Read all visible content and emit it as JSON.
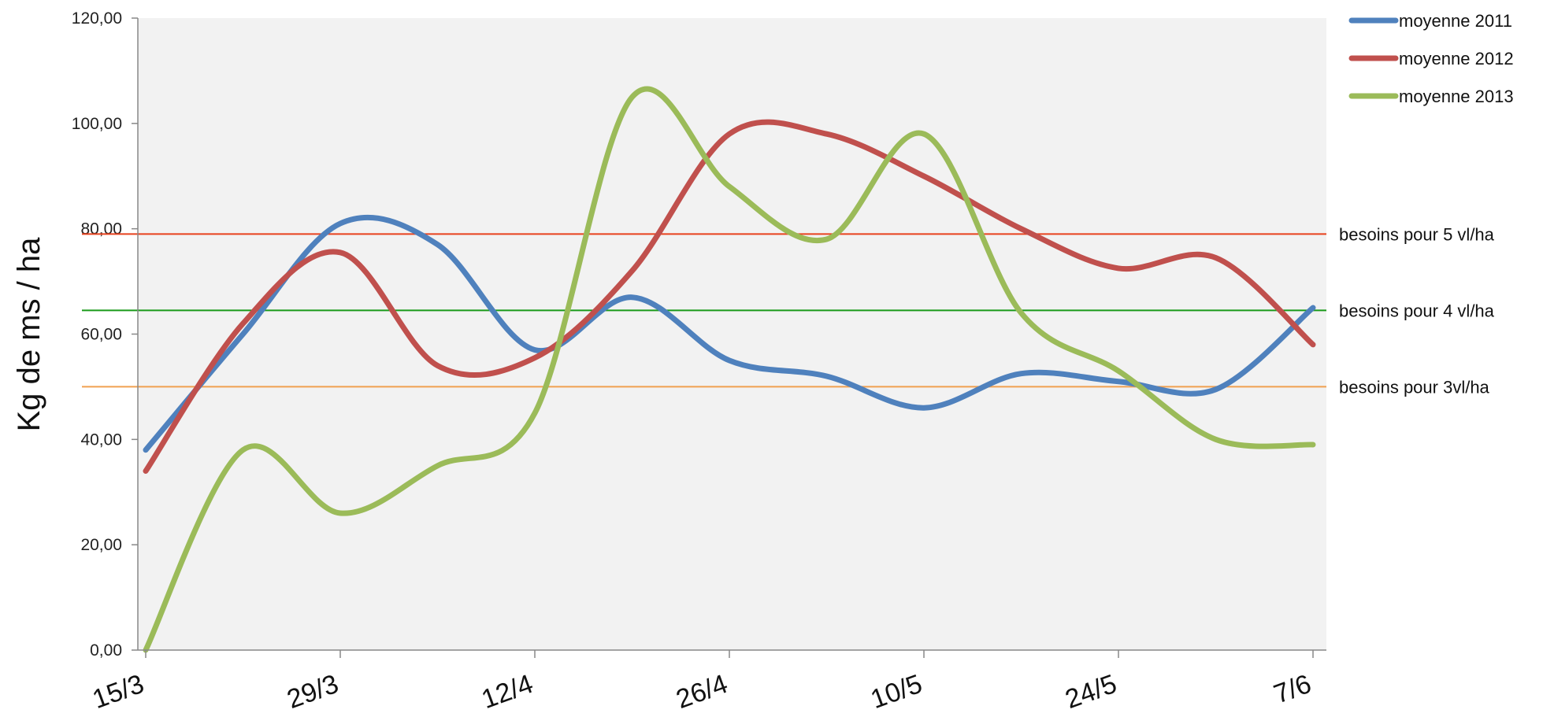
{
  "chart_data": {
    "type": "line",
    "title": "",
    "xlabel": "",
    "ylabel": "Kg de ms / ha",
    "ylim": [
      0,
      120
    ],
    "xlim": [
      "15/3",
      "7/6"
    ],
    "y_tick_labels": [
      "0,00",
      "20,00",
      "40,00",
      "60,00",
      "80,00",
      "100,00",
      "120,00"
    ],
    "x_tick_labels": [
      "15/3",
      "29/3",
      "12/4",
      "26/4",
      "10/5",
      "24/5",
      "7/6"
    ],
    "grid": false,
    "plot_background": "#f2f2f2",
    "smooth_lines": true,
    "legend_position": "top-right",
    "x": [
      "15/3",
      "22/3",
      "29/3",
      "5/4",
      "12/4",
      "19/4",
      "26/4",
      "3/5",
      "10/5",
      "17/5",
      "24/5",
      "31/5",
      "7/6"
    ],
    "series": [
      {
        "name": "moyenne 2011",
        "color": "#4f81bd",
        "values": [
          38,
          60,
          81,
          77,
          57,
          67,
          55,
          52,
          46,
          52.5,
          51,
          49.5,
          65
        ]
      },
      {
        "name": "moyenne 2012",
        "color": "#c0504d",
        "values": [
          34,
          62,
          75.5,
          54,
          55.5,
          72,
          98,
          98,
          90,
          80,
          72.5,
          74.5,
          58
        ]
      },
      {
        "name": "moyenne 2013",
        "color": "#9bbb59",
        "values": [
          0,
          38,
          26,
          35,
          45,
          105,
          88,
          78,
          98,
          64,
          53,
          40,
          39
        ]
      }
    ],
    "reference_lines": [
      {
        "label": "besoins pour 5 vl/ha",
        "value": 79,
        "color": "#e8421e"
      },
      {
        "label": "besoins pour 4 vl/ha",
        "value": 64.5,
        "color": "#1a9a1a"
      },
      {
        "label": "besoins pour 3vl/ha",
        "value": 50,
        "color": "#f0a050"
      }
    ]
  }
}
